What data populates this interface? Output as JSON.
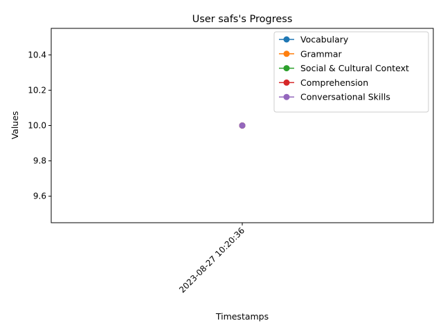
{
  "chart_data": {
    "type": "line",
    "title": "User safs's Progress",
    "xlabel": "Timestamps",
    "ylabel": "Values",
    "x": [
      "2023-08-27 10:20:36"
    ],
    "ylim": [
      9.45,
      10.55
    ],
    "yticks": [
      9.6,
      9.8,
      10.0,
      10.2,
      10.4
    ],
    "grid": false,
    "legend_position": "top-right",
    "series": [
      {
        "name": "Vocabulary",
        "color": "#1f77b4",
        "values": [
          10
        ]
      },
      {
        "name": "Grammar",
        "color": "#ff7f0e",
        "values": [
          10
        ]
      },
      {
        "name": "Social & Cultural Context",
        "color": "#2ca02c",
        "values": [
          10
        ]
      },
      {
        "name": "Comprehension",
        "color": "#d62728",
        "values": [
          10
        ]
      },
      {
        "name": "Conversational Skills",
        "color": "#9467bd",
        "values": [
          10
        ]
      }
    ]
  }
}
